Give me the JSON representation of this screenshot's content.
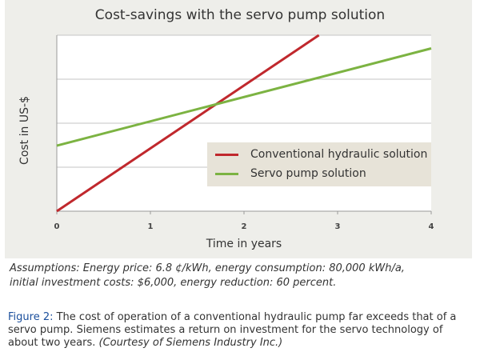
{
  "chart_data": {
    "type": "line",
    "title": "Cost-savings with the servo pump solution",
    "xlabel": "Time in years",
    "ylabel": "Cost in US-$",
    "x_ticks": [
      "0",
      "1",
      "2",
      "3",
      "4"
    ],
    "xlim": [
      0,
      4
    ],
    "ylim": [
      0,
      4
    ],
    "grid": "horizontal",
    "legend_position": "lower-right",
    "series": [
      {
        "name": "Conventional hydraulic solution",
        "color": "#c0282d",
        "x": [
          0,
          2.8
        ],
        "y": [
          0,
          4
        ]
      },
      {
        "name": "Servo pump solution",
        "color": "#7cb342",
        "x": [
          0,
          4
        ],
        "y": [
          1.49,
          3.7
        ]
      }
    ]
  },
  "assumptions": {
    "line1": "Assumptions: Energy price: 6.8 ¢/kWh, energy consumption: 80,000 kWh/a,",
    "line2": "initial investment costs: $6,000, energy reduction: 60 percent."
  },
  "caption": {
    "label": "Figure 2:",
    "text": " The cost of operation of a conventional hydraulic pump far exceeds that of a servo pump. Siemens estimates a return on investment for the servo technology of about two years. ",
    "credit": "(Courtesy of Siemens Industry Inc.)"
  }
}
